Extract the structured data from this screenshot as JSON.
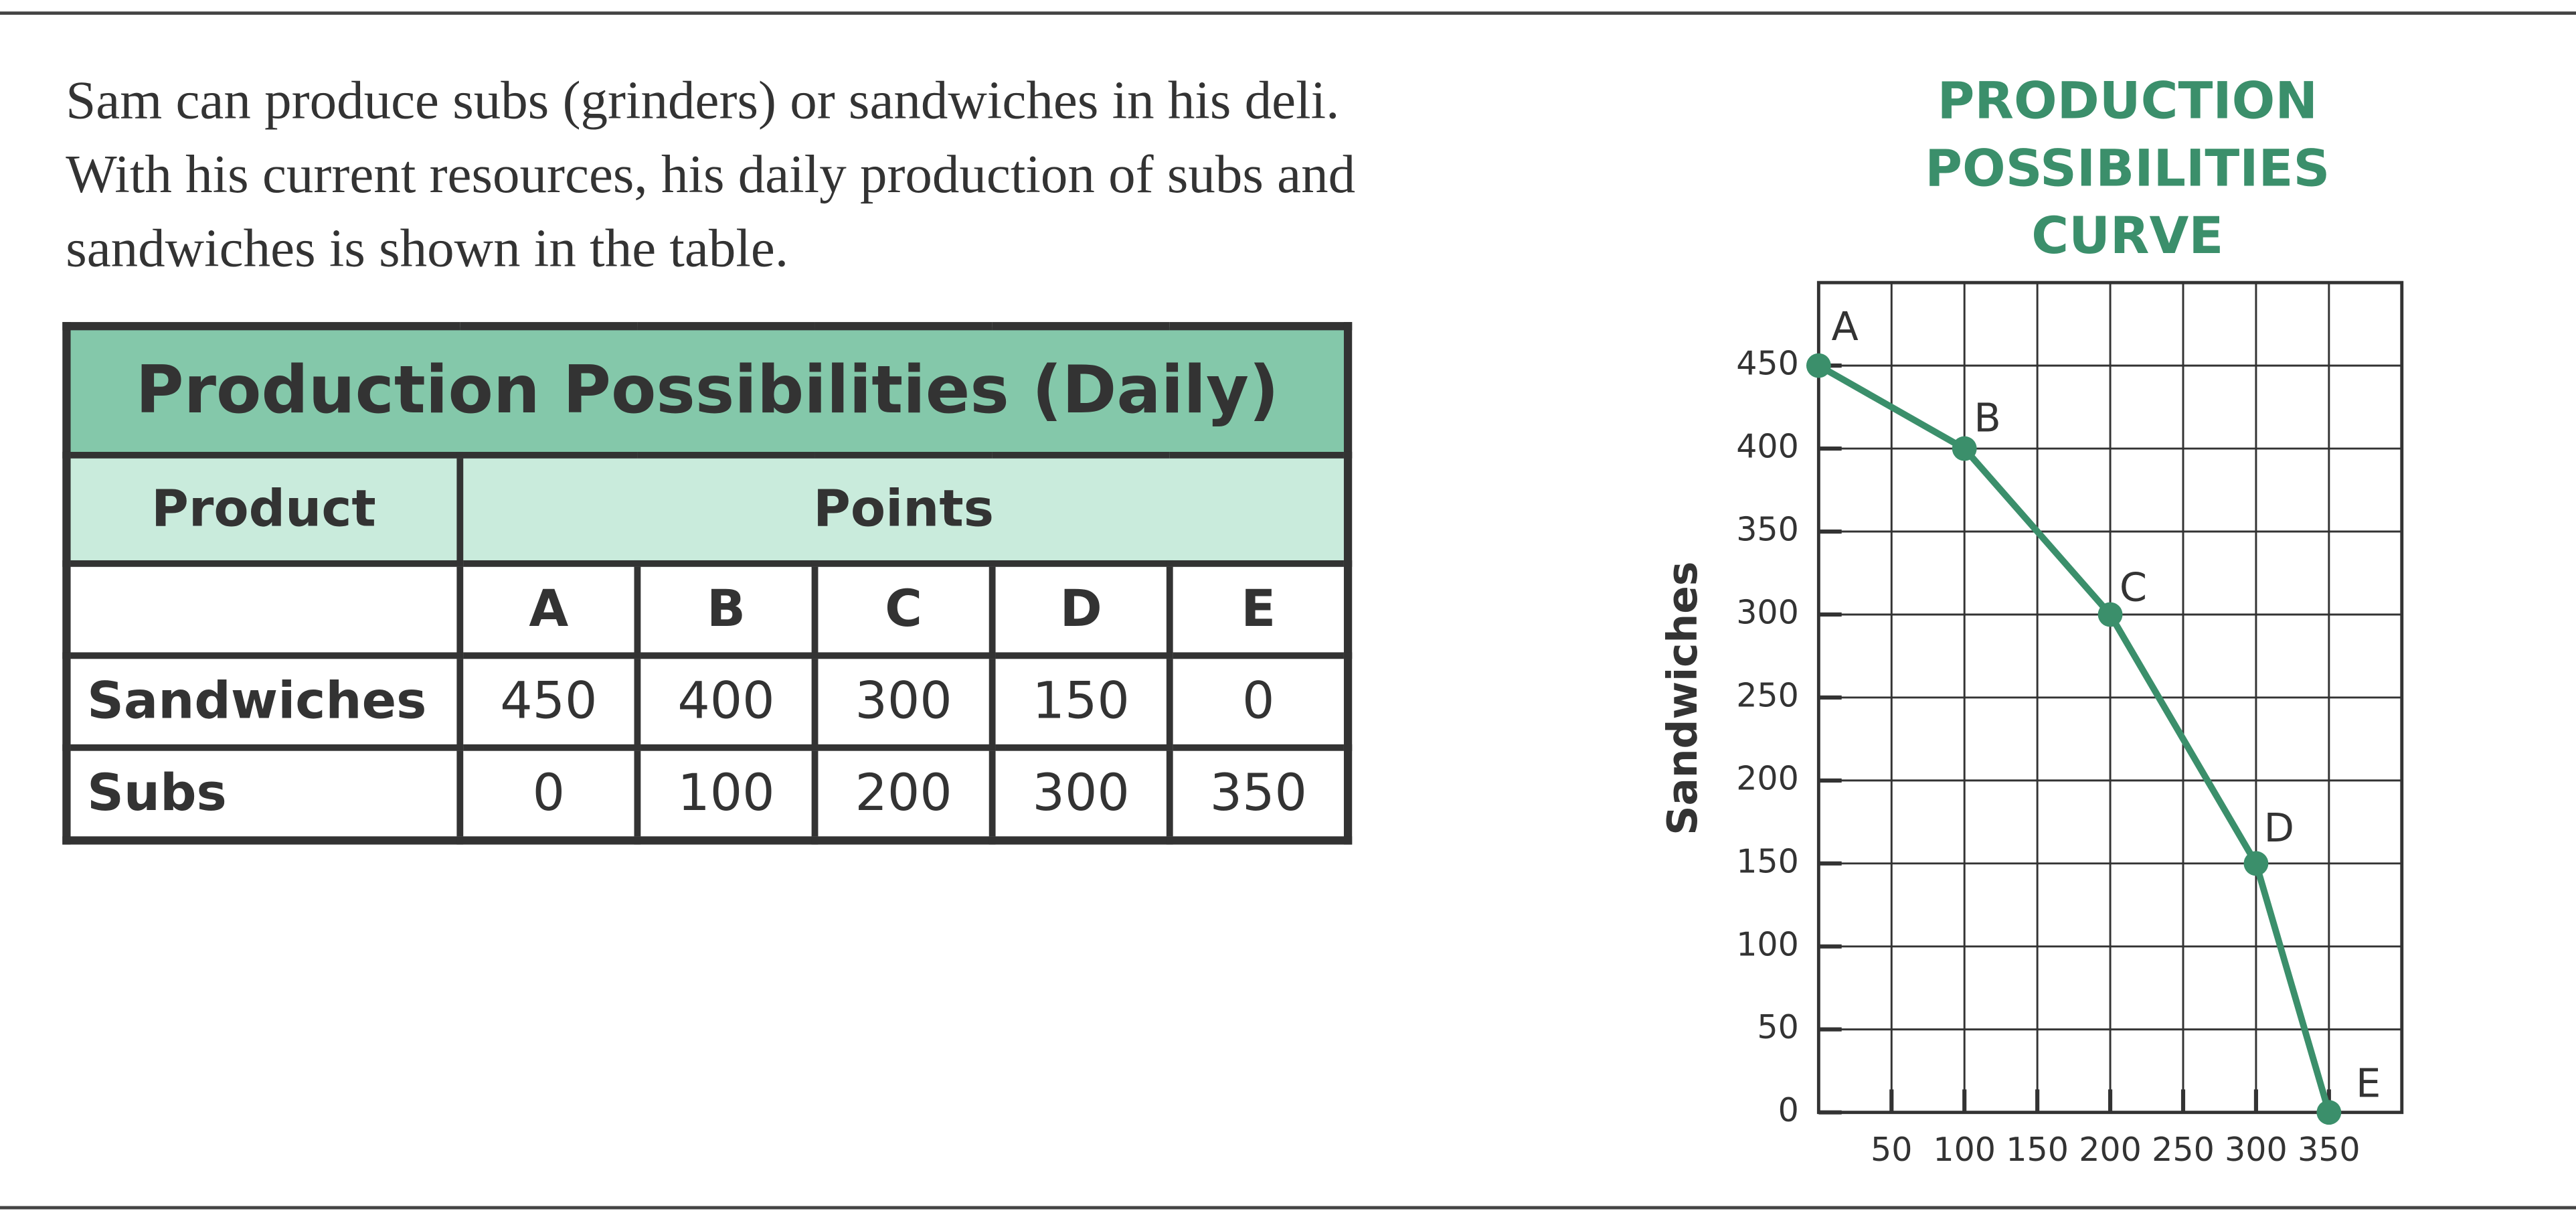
{
  "paragraph": "Sam can produce subs (grinders) or sandwiches in his deli. With his current resources, his daily production of subs and sandwiches is shown in the table.",
  "table": {
    "title": "Production Possibilities (Daily)",
    "header": [
      "Product",
      "Points"
    ],
    "columns": [
      "A",
      "B",
      "C",
      "D",
      "E"
    ],
    "rows": [
      [
        "Sandwiches",
        450,
        400,
        300,
        150,
        0
      ],
      [
        "Subs",
        0,
        100,
        200,
        300,
        350
      ]
    ]
  },
  "chart_data": {
    "type": "line",
    "title": "PRODUCTION POSSIBILITIES CURVE",
    "y_label": "Sandwiches",
    "x": [
      0,
      100,
      200,
      300,
      350
    ],
    "series": [
      {
        "color": "#3b8f6b",
        "values": [
          450,
          400,
          300,
          150,
          0
        ]
      }
    ],
    "point_labels": [
      "A",
      "B",
      "C",
      "D",
      "E"
    ],
    "xlim": [
      0,
      400
    ],
    "ylim": [
      0,
      500
    ],
    "xticks": [
      50,
      100,
      150,
      200,
      250,
      300,
      350
    ],
    "yticks": [
      0,
      50,
      100,
      150,
      200,
      250,
      300,
      350,
      400,
      450
    ],
    "grid": true
  }
}
